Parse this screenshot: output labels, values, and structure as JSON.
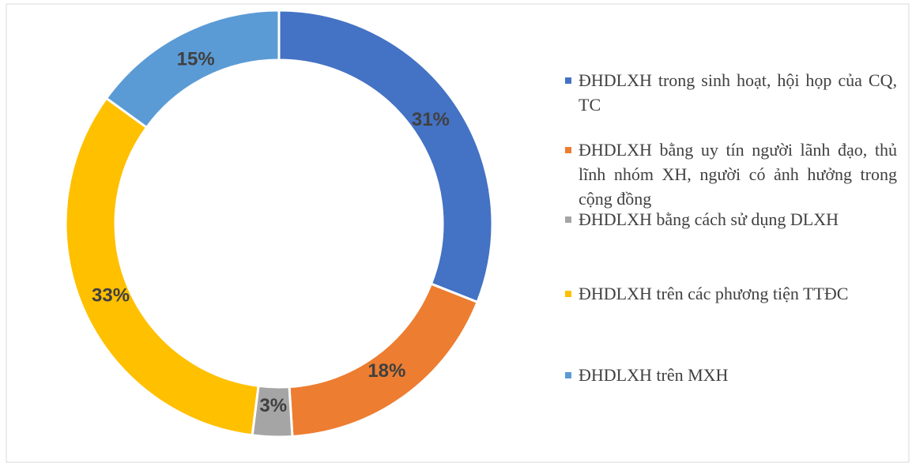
{
  "chart_data": {
    "type": "donut",
    "categories": [
      "ĐHDLXH trong sinh hoạt, hội họp của CQ, TC",
      "ĐHDLXH bằng uy tín người lãnh đạo, thủ lĩnh nhóm XH, người có ảnh hưởng trong cộng đồng",
      "ĐHDLXH bằng cách sử dụng DLXH",
      "ĐHDLXH trên các phương tiện TTĐC",
      "ĐHDLXH trên MXH"
    ],
    "values": [
      31,
      18,
      3,
      33,
      15
    ],
    "value_labels": [
      "31%",
      "18%",
      "3%",
      "33%",
      "15%"
    ],
    "colors": [
      "#4472c4",
      "#ed7d31",
      "#a5a5a5",
      "#ffc000",
      "#5b9bd5"
    ],
    "legend": "right"
  }
}
